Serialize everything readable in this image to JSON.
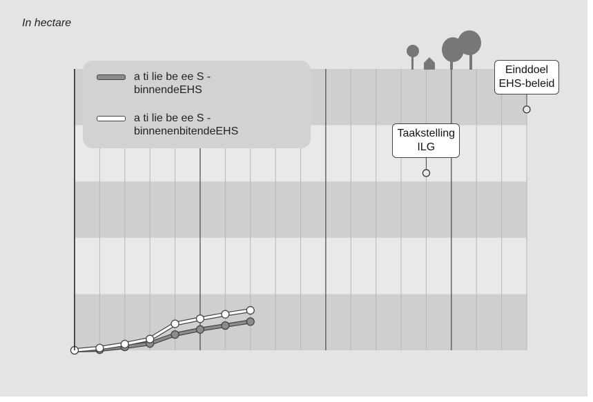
{
  "chart_data": {
    "type": "line",
    "title": "In hectare",
    "xlim": [
      0,
      18
    ],
    "ylim": [
      0,
      5
    ],
    "xticks": [
      0,
      1,
      2,
      3,
      4,
      5,
      6,
      7,
      8,
      9,
      10,
      11,
      12,
      13,
      14,
      15,
      16,
      17,
      18
    ],
    "major_every": 5,
    "yticks": [
      0,
      1,
      2,
      3,
      4,
      5
    ],
    "tick_labels": false,
    "grid": "banded",
    "series": [
      {
        "name": "a ti lie be ee S - binnendeEHS",
        "color": "#8c8c8c",
        "x": [
          0,
          1,
          2,
          3,
          4,
          5,
          6,
          7
        ],
        "values": [
          0,
          0.01,
          0.06,
          0.12,
          0.28,
          0.37,
          0.44,
          0.51
        ]
      },
      {
        "name": "a ti lie be ee S - binnenenbitendeEHS",
        "color": "#ffffff",
        "x": [
          0,
          1,
          2,
          3,
          4,
          5,
          6,
          7
        ],
        "values": [
          0,
          0.04,
          0.11,
          0.2,
          0.47,
          0.56,
          0.64,
          0.71
        ]
      }
    ],
    "annotations": [
      {
        "text": "Taakstelling\nILG",
        "x": 14,
        "y": 3.15
      },
      {
        "text": "Einddoel\nEHS-beleid",
        "x": 18,
        "y": 4.28
      }
    ]
  }
}
